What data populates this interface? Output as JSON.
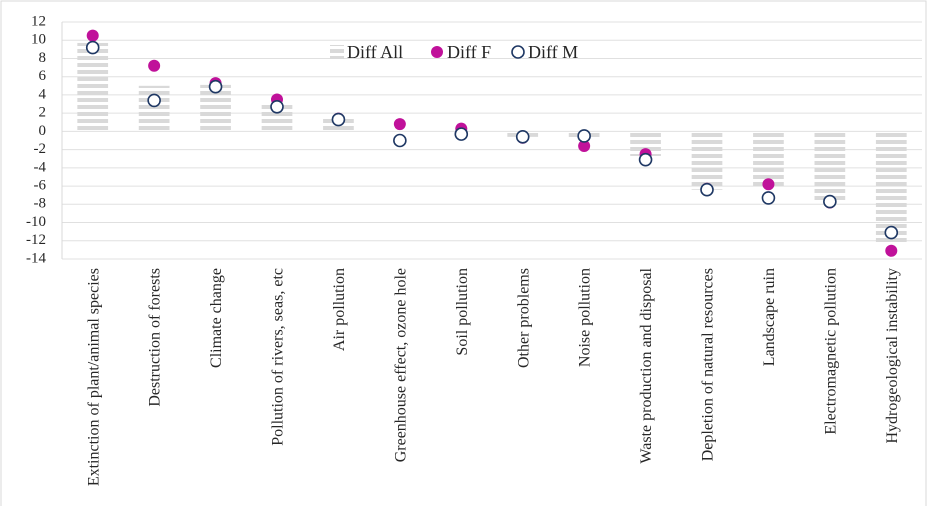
{
  "chart_data": {
    "type": "bar+scatter",
    "categories": [
      "Extinction of plant/animal species",
      "Destruction of forests",
      "Climate change",
      "Pollution of rivers, seas, etc",
      "Air pollution",
      "Greenhouse effect, ozone hole",
      "Soil pollution",
      "Other problems",
      "Noise pollution",
      "Waste production and disposal",
      "Depletion of natural resources",
      "Landscape ruin",
      "Electromagnetic pollution",
      "Hydrogeological instability"
    ],
    "series": [
      {
        "name": "Diff All",
        "color": "#d9d9d9",
        "values": [
          9.7,
          5.0,
          5.1,
          3.2,
          1.6,
          0.1,
          0.0,
          -0.6,
          -0.9,
          -2.7,
          -6.4,
          -6.3,
          -7.7,
          -12.3
        ]
      },
      {
        "name": "Diff F",
        "color": "#c0119a",
        "values": [
          10.5,
          7.2,
          5.3,
          3.5,
          1.4,
          0.8,
          0.3,
          -0.7,
          -1.6,
          -2.5,
          -6.3,
          -5.8,
          -7.8,
          -13.1
        ]
      },
      {
        "name": "Diff M",
        "color": "#1f3864",
        "values": [
          9.2,
          3.4,
          4.9,
          2.7,
          1.3,
          -1.0,
          -0.3,
          -0.6,
          -0.5,
          -3.1,
          -6.4,
          -7.3,
          -7.7,
          -11.1
        ]
      }
    ],
    "ylim": [
      -14,
      12
    ],
    "yticks": [
      -14,
      -12,
      -10,
      -8,
      -6,
      -4,
      -2,
      0,
      2,
      4,
      6,
      8,
      10,
      12
    ],
    "grid": true
  }
}
